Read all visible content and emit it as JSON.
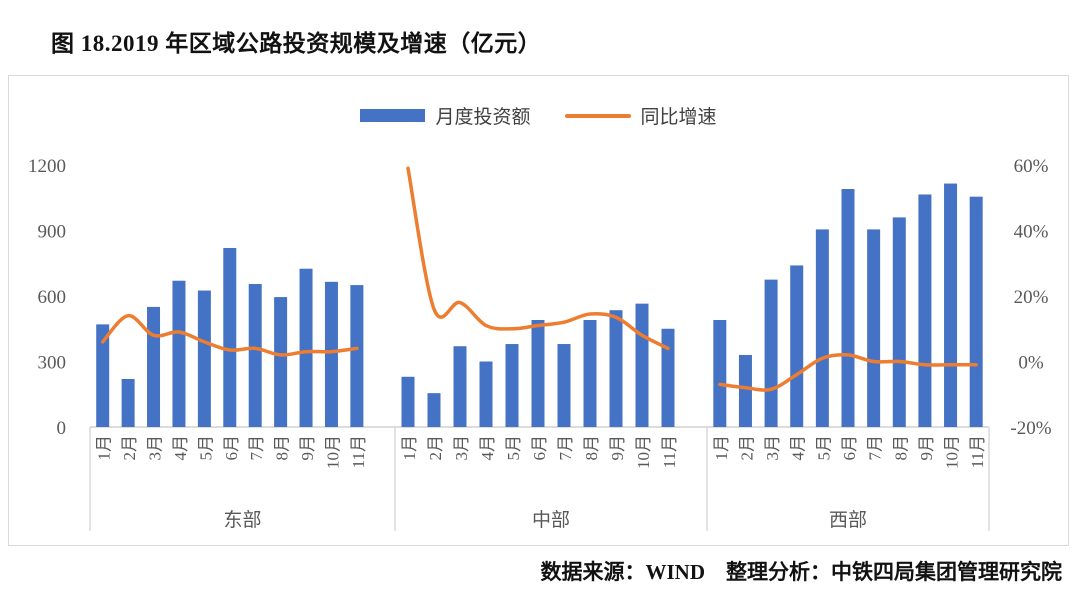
{
  "title": "图 18.2019 年区域公路投资规模及增速（亿元）",
  "legend": {
    "bar": {
      "label": "月度投资额",
      "color": "#4472C4"
    },
    "line": {
      "label": "同比增速",
      "color": "#ED7D31"
    }
  },
  "footer": "数据来源：WIND　整理分析：中铁四局集团管理研究院",
  "colors": {
    "bar": "#4472C4",
    "line": "#ED7D31",
    "axis_text": "#595959",
    "frame_border": "#d9d9d9",
    "axis_line": "#c6c6c6"
  },
  "chart_data": {
    "type": "bar+line",
    "title": "图 18.2019 年区域公路投资规模及增速（亿元）",
    "unit_bar": "亿元",
    "unit_line": "%",
    "legend_position": "top-center",
    "grid": false,
    "groups": [
      "东部",
      "中部",
      "西部"
    ],
    "months": [
      "1月",
      "2月",
      "3月",
      "4月",
      "5月",
      "6月",
      "7月",
      "8月",
      "9月",
      "10月",
      "11月"
    ],
    "left_axis": {
      "min": 0,
      "max": 1200,
      "ticks": [
        0,
        300,
        600,
        900,
        1200
      ]
    },
    "right_axis": {
      "min": -20,
      "max": 60,
      "ticks": [
        {
          "label": "-20%",
          "value": -20
        },
        {
          "label": "0%",
          "value": 0
        },
        {
          "label": "20%",
          "value": 20
        },
        {
          "label": "40%",
          "value": 40
        },
        {
          "label": "60%",
          "value": 60
        }
      ]
    },
    "series": [
      {
        "name": "月度投资额",
        "type": "bar",
        "color": "#4472C4",
        "axis": "left",
        "values": {
          "东部": [
            470,
            220,
            550,
            670,
            625,
            820,
            655,
            595,
            725,
            665,
            650
          ],
          "中部": [
            230,
            155,
            370,
            300,
            380,
            490,
            380,
            490,
            535,
            565,
            450
          ],
          "西部": [
            490,
            330,
            675,
            740,
            905,
            1090,
            905,
            960,
            1065,
            1115,
            1055
          ]
        }
      },
      {
        "name": "同比增速",
        "type": "line",
        "color": "#ED7D31",
        "axis": "right",
        "values": {
          "东部": [
            6,
            14,
            8,
            9,
            6,
            3.5,
            4,
            2,
            3,
            3,
            4
          ],
          "中部": [
            59,
            16,
            18,
            11,
            10,
            11,
            12,
            14.5,
            13.5,
            8,
            4
          ],
          "西部": [
            -7,
            -8,
            -8.5,
            -4,
            1,
            2,
            0,
            0,
            -1,
            -1,
            -1
          ]
        }
      }
    ]
  }
}
